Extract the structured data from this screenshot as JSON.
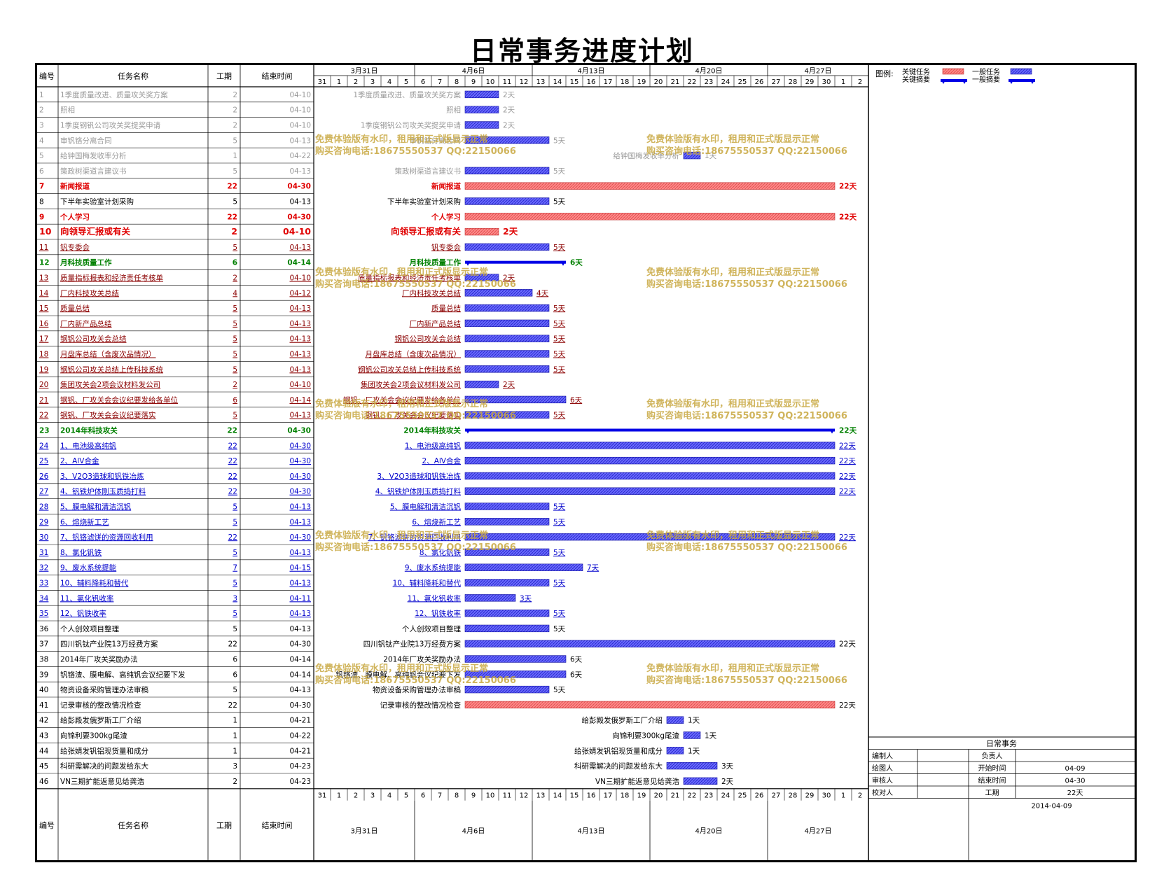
{
  "title": "日常事务进度计划",
  "headers": {
    "id": "编号",
    "name": "任务名称",
    "dur": "工期",
    "end": "结束时间"
  },
  "colors": {
    "critical": "#ff7b7b",
    "critical_text": "#e00000",
    "normal": "#5a5aff",
    "summary": "#0000e6",
    "summary_text": "#008000",
    "link_text": "#0000cc",
    "faded": "#9a9a9a",
    "watermark": "#c8a840"
  },
  "legend": {
    "label": "图例:",
    "critical_task": "关键任务",
    "critical_summary": "关键摘要",
    "normal_task": "一般任务",
    "normal_summary": "一般摘要"
  },
  "watermark": {
    "line1": "免费体验版有水印，租用和正式版显示正常",
    "line2": "购买咨询电话:18675550537 QQ:22150066"
  },
  "timeline": {
    "weeks": [
      {
        "label": "3月31日",
        "start": 0
      },
      {
        "label": "4月6日",
        "start": 6
      },
      {
        "label": "4月13日",
        "start": 13
      },
      {
        "label": "4月20日",
        "start": 20
      },
      {
        "label": "4月27日",
        "start": 27
      }
    ],
    "days": [
      "31",
      "1",
      "2",
      "3",
      "4",
      "5",
      "6",
      "7",
      "8",
      "9",
      "10",
      "11",
      "12",
      "13",
      "14",
      "15",
      "16",
      "17",
      "18",
      "19",
      "20",
      "21",
      "22",
      "23",
      "24",
      "25",
      "26",
      "27",
      "28",
      "29",
      "30",
      "1",
      "2"
    ]
  },
  "info": {
    "title": "日常事务",
    "rows": [
      {
        "l1": "编制人",
        "v1": "",
        "l2": "负责人",
        "v2": ""
      },
      {
        "l1": "绘图人",
        "v1": "",
        "l2": "开始时间",
        "v2": "04-09"
      },
      {
        "l1": "审核人",
        "v1": "",
        "l2": "结束时间",
        "v2": "04-30"
      },
      {
        "l1": "校对人",
        "v1": "",
        "l2": "工期",
        "v2": "22天"
      }
    ],
    "date": "2014-04-09"
  },
  "day_unit": "天",
  "chart_data": {
    "type": "gantt",
    "title": "日常事务进度计划",
    "x_start": "03-31",
    "x_end": "05-02",
    "tasks": [
      {
        "id": "1",
        "name": "1季度质量改进、质量攻关奖方案",
        "dur": "2",
        "end": "04-10",
        "start_day": 9,
        "days": 2,
        "style": "faded"
      },
      {
        "id": "2",
        "name": "照相",
        "dur": "2",
        "end": "04-10",
        "start_day": 9,
        "days": 2,
        "style": "faded"
      },
      {
        "id": "3",
        "name": "1季度钢钒公司攻关奖提奖申请",
        "dur": "2",
        "end": "04-10",
        "start_day": 9,
        "days": 2,
        "style": "faded"
      },
      {
        "id": "4",
        "name": "审钒铬分离合同",
        "dur": "5",
        "end": "04-13",
        "start_day": 9,
        "days": 5,
        "style": "faded"
      },
      {
        "id": "5",
        "name": "给钟国梅发收率分析",
        "dur": "1",
        "end": "04-22",
        "start_day": 22,
        "days": 1,
        "style": "faded"
      },
      {
        "id": "6",
        "name": "策政树渠道言建议书",
        "dur": "5",
        "end": "04-13",
        "start_day": 9,
        "days": 5,
        "style": "faded"
      },
      {
        "id": "7",
        "name": "新闻报道",
        "dur": "22",
        "end": "04-30",
        "start_day": 9,
        "days": 22,
        "style": "critical"
      },
      {
        "id": "8",
        "name": "下半年实验室计划采购",
        "dur": "5",
        "end": "04-13",
        "start_day": 9,
        "days": 5,
        "style": "normal"
      },
      {
        "id": "9",
        "name": "个人学习",
        "dur": "22",
        "end": "04-30",
        "start_day": 9,
        "days": 22,
        "style": "critical"
      },
      {
        "id": "10",
        "name": "向领导汇报或有关",
        "dur": "2",
        "end": "04-10",
        "start_day": 9,
        "days": 2,
        "style": "critical_big"
      },
      {
        "id": "11",
        "name": "钒专委会",
        "dur": "5",
        "end": "04-13",
        "start_day": 9,
        "days": 5,
        "style": "link"
      },
      {
        "id": "12",
        "name": "月科技质量工作",
        "dur": "6",
        "end": "04-14",
        "start_day": 9,
        "days": 6,
        "style": "summary"
      },
      {
        "id": "13",
        "name": "质量指标报表和经济责任考核单",
        "dur": "2",
        "end": "04-10",
        "start_day": 9,
        "days": 2,
        "style": "link"
      },
      {
        "id": "14",
        "name": "厂内科技攻关总结",
        "dur": "4",
        "end": "04-12",
        "start_day": 9,
        "days": 4,
        "style": "link"
      },
      {
        "id": "15",
        "name": "质量总结",
        "dur": "5",
        "end": "04-13",
        "start_day": 9,
        "days": 5,
        "style": "link"
      },
      {
        "id": "16",
        "name": "厂内新产品总结",
        "dur": "5",
        "end": "04-13",
        "start_day": 9,
        "days": 5,
        "style": "link"
      },
      {
        "id": "17",
        "name": "钢钒公司攻关会总结",
        "dur": "5",
        "end": "04-13",
        "start_day": 9,
        "days": 5,
        "style": "link"
      },
      {
        "id": "18",
        "name": "月盘库总结（含废次品情况）",
        "dur": "5",
        "end": "04-13",
        "start_day": 9,
        "days": 5,
        "style": "link"
      },
      {
        "id": "19",
        "name": "钢钒公司攻关总结上传科技系统",
        "dur": "5",
        "end": "04-13",
        "start_day": 9,
        "days": 5,
        "style": "link"
      },
      {
        "id": "20",
        "name": "集团攻关会2项会议材料发公司",
        "dur": "2",
        "end": "04-10",
        "start_day": 9,
        "days": 2,
        "style": "link"
      },
      {
        "id": "21",
        "name": "钢钒、厂攻关会会议纪要发给各单位",
        "dur": "6",
        "end": "04-14",
        "start_day": 9,
        "days": 6,
        "style": "link"
      },
      {
        "id": "22",
        "name": "钢钒、厂攻关会会议纪要落实",
        "dur": "5",
        "end": "04-13",
        "start_day": 9,
        "days": 5,
        "style": "link"
      },
      {
        "id": "23",
        "name": "2014年科技攻关",
        "dur": "22",
        "end": "04-30",
        "start_day": 9,
        "days": 22,
        "style": "summary"
      },
      {
        "id": "24",
        "name": "1、电池级高纯钒",
        "dur": "22",
        "end": "04-30",
        "start_day": 9,
        "days": 22,
        "style": "link"
      },
      {
        "id": "25",
        "name": "2、AlV合金",
        "dur": "22",
        "end": "04-30",
        "start_day": 9,
        "days": 22,
        "style": "link"
      },
      {
        "id": "26",
        "name": "3、V2O3造球和钒铁冶炼",
        "dur": "22",
        "end": "04-30",
        "start_day": 9,
        "days": 22,
        "style": "link"
      },
      {
        "id": "27",
        "name": "4、钒铁炉体刚玉质捣打料",
        "dur": "22",
        "end": "04-30",
        "start_day": 9,
        "days": 22,
        "style": "link"
      },
      {
        "id": "28",
        "name": "5、膜电解和清洁沉钒",
        "dur": "5",
        "end": "04-13",
        "start_day": 9,
        "days": 5,
        "style": "link"
      },
      {
        "id": "29",
        "name": "6、熔烧新工艺",
        "dur": "5",
        "end": "04-13",
        "start_day": 9,
        "days": 5,
        "style": "link"
      },
      {
        "id": "30",
        "name": "7、钒铬滤饼的资源回收利用",
        "dur": "22",
        "end": "04-30",
        "start_day": 9,
        "days": 22,
        "style": "link"
      },
      {
        "id": "31",
        "name": "8、氯化钒铁",
        "dur": "5",
        "end": "04-13",
        "start_day": 9,
        "days": 5,
        "style": "link"
      },
      {
        "id": "32",
        "name": "9、废水系统提能",
        "dur": "7",
        "end": "04-15",
        "start_day": 9,
        "days": 7,
        "style": "link"
      },
      {
        "id": "33",
        "name": "10、辅料降耗和替代",
        "dur": "5",
        "end": "04-13",
        "start_day": 9,
        "days": 5,
        "style": "link"
      },
      {
        "id": "34",
        "name": "11、氯化钒收率",
        "dur": "3",
        "end": "04-11",
        "start_day": 9,
        "days": 3,
        "style": "link"
      },
      {
        "id": "35",
        "name": "12、钒铁收率",
        "dur": "5",
        "end": "04-13",
        "start_day": 9,
        "days": 5,
        "style": "link"
      },
      {
        "id": "36",
        "name": "个人创效项目整理",
        "dur": "5",
        "end": "04-13",
        "start_day": 9,
        "days": 5,
        "style": "normal"
      },
      {
        "id": "37",
        "name": "四川钒钛产业院13万经费方案",
        "dur": "22",
        "end": "04-30",
        "start_day": 9,
        "days": 22,
        "style": "normal"
      },
      {
        "id": "38",
        "name": "2014年厂攻关奖励办法",
        "dur": "6",
        "end": "04-14",
        "start_day": 9,
        "days": 6,
        "style": "normal"
      },
      {
        "id": "39",
        "name": "钒铬渣、膜电解、高纯钒会议纪要下发",
        "dur": "6",
        "end": "04-14",
        "start_day": 9,
        "days": 6,
        "style": "normal"
      },
      {
        "id": "40",
        "name": "物资设备采购管理办法审稿",
        "dur": "5",
        "end": "04-13",
        "start_day": 9,
        "days": 5,
        "style": "normal"
      },
      {
        "id": "41",
        "name": "记录审核的整改情况检查",
        "dur": "22",
        "end": "04-30",
        "start_day": 9,
        "days": 22,
        "style": "critical_plain"
      },
      {
        "id": "42",
        "name": "给彭殿发俄罗斯工厂介绍",
        "dur": "1",
        "end": "04-21",
        "start_day": 21,
        "days": 1,
        "style": "normal"
      },
      {
        "id": "43",
        "name": "向锦利要300kg尾渣",
        "dur": "1",
        "end": "04-22",
        "start_day": 22,
        "days": 1,
        "style": "normal"
      },
      {
        "id": "44",
        "name": "给张婧发钒铝现货量和成分",
        "dur": "1",
        "end": "04-21",
        "start_day": 21,
        "days": 1,
        "style": "normal"
      },
      {
        "id": "45",
        "name": "科研需解决的问题发给东大",
        "dur": "3",
        "end": "04-23",
        "start_day": 21,
        "days": 3,
        "style": "normal"
      },
      {
        "id": "46",
        "name": "VN三期扩能返意见给龚浩",
        "dur": "2",
        "end": "04-23",
        "start_day": 22,
        "days": 2,
        "style": "normal"
      }
    ]
  }
}
